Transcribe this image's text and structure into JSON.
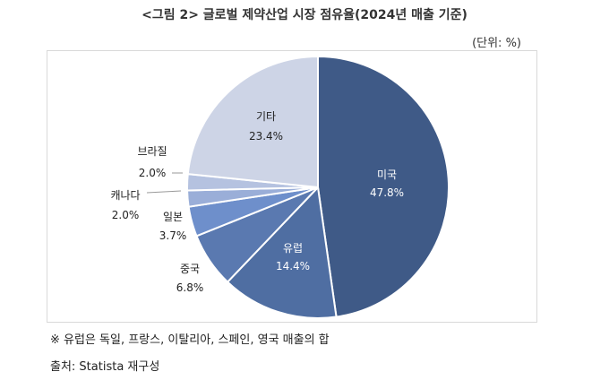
{
  "title": "<그림 2> 글로벌 제약산업 시장 점유율(2024년 매출 기준)",
  "unit": "(단위: %)",
  "chart_data": {
    "type": "pie",
    "categories": [
      "미국",
      "유럽",
      "중국",
      "일본",
      "캐나다",
      "브라질",
      "기타"
    ],
    "values": [
      47.8,
      14.4,
      6.8,
      3.7,
      2.0,
      2.0,
      23.4
    ],
    "value_labels": [
      "47.8%",
      "14.4%",
      "6.8%",
      "3.7%",
      "2.0%",
      "2.0%",
      "23.4%"
    ],
    "colors": [
      "#3f5a87",
      "#4f6ea2",
      "#5a79b0",
      "#6e8fcb",
      "#9aaed8",
      "#b5c2e0",
      "#cdd4e6"
    ],
    "legend": "none"
  },
  "footnote": "※ 유럽은 독일, 프랑스, 이탈리아, 스페인, 영국 매출의 합",
  "source": "출처: Statista 재구성"
}
